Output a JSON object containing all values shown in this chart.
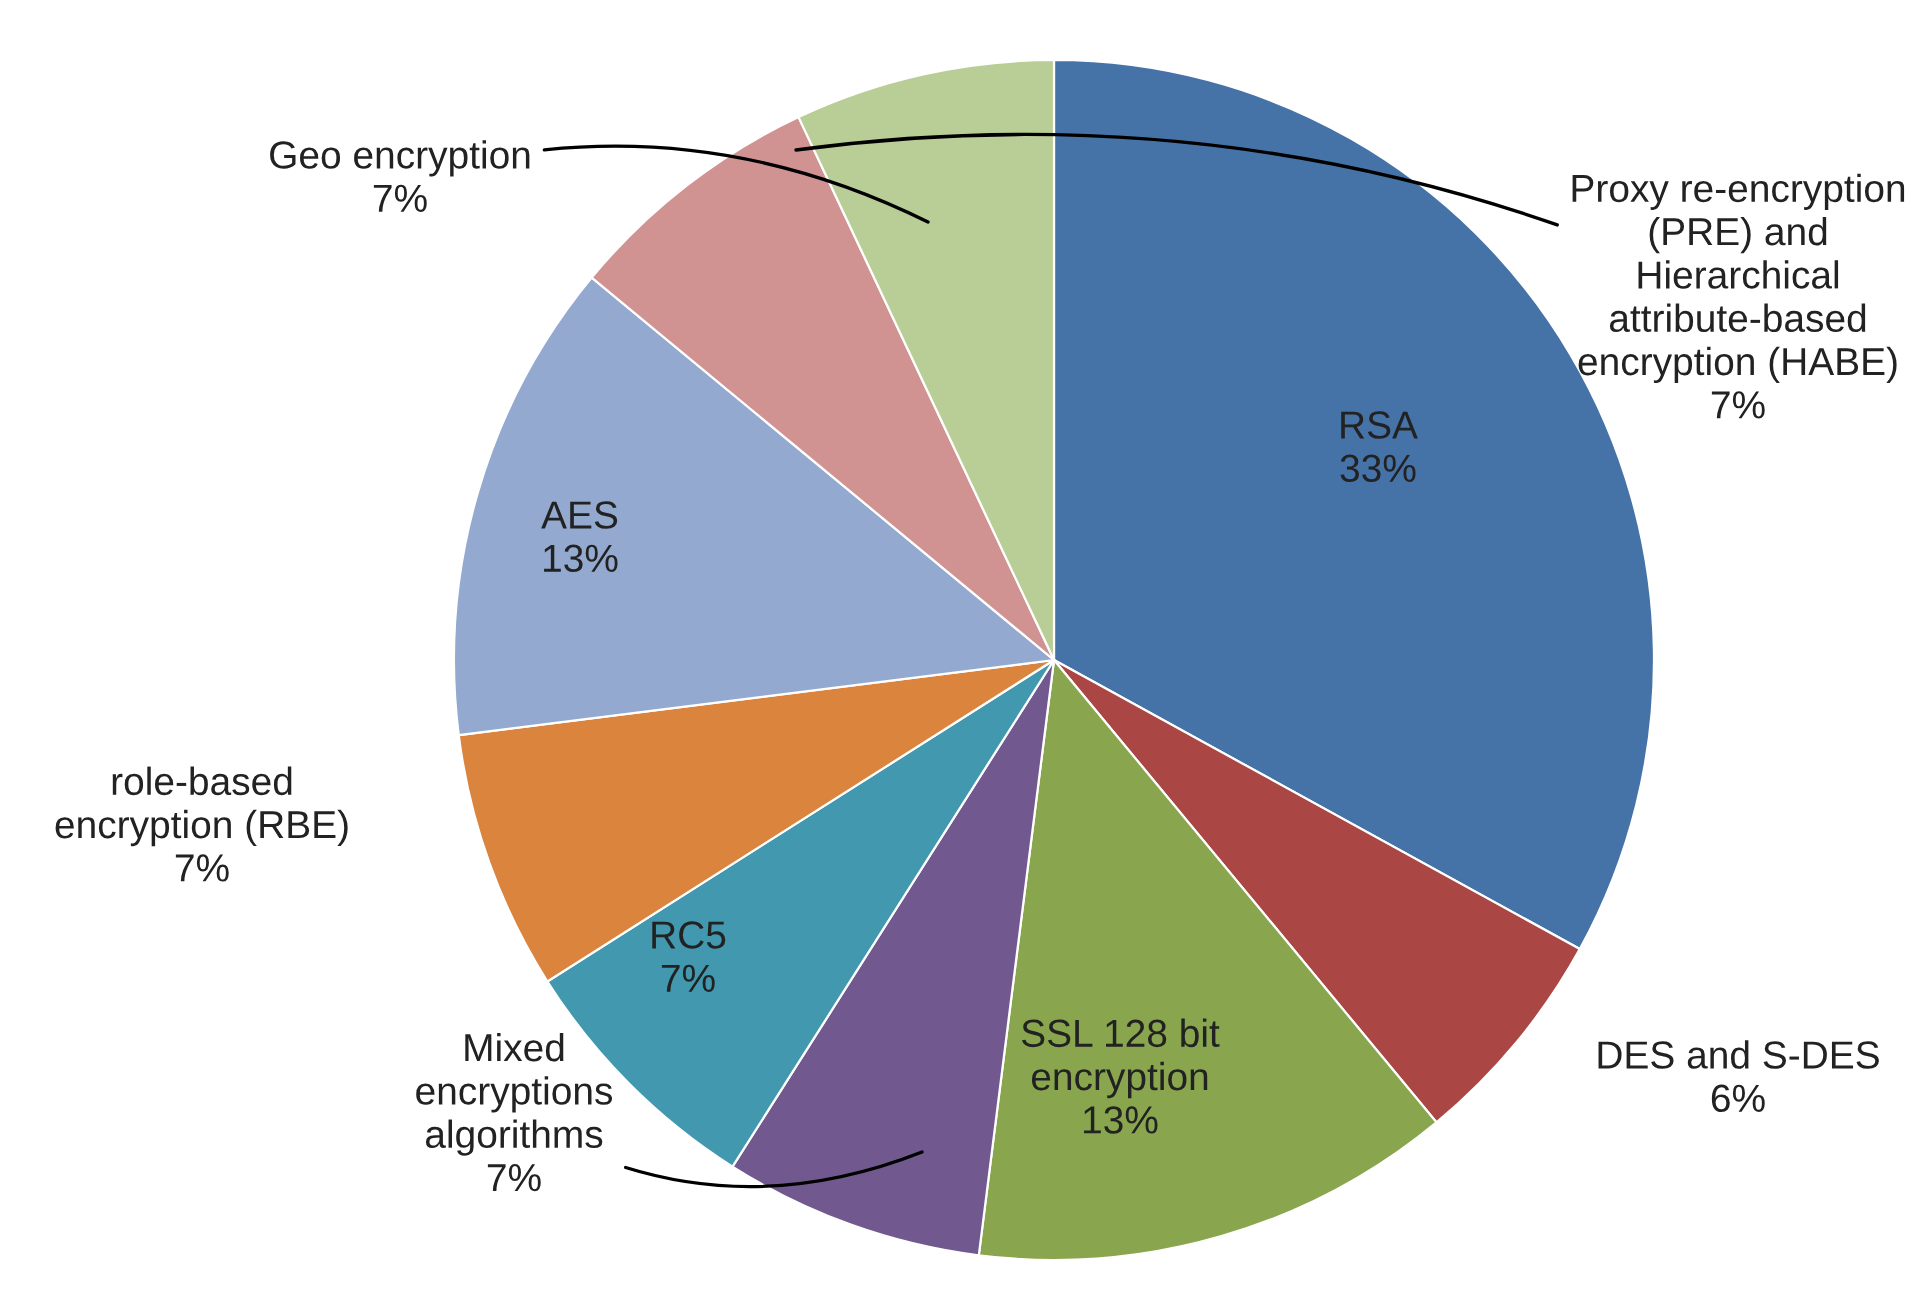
{
  "chart_data": {
    "type": "pie",
    "categories": [
      "RSA",
      "DES and S-DES",
      "SSL 128 bit encryption",
      "Mixed encryptions algorithms",
      "RC5",
      "role-based encryption (RBE)",
      "AES",
      "Proxy re-encryption (PRE) and  Hierarchical attribute-based encryption (HABE)",
      "Geo encryption"
    ],
    "values": [
      33,
      6,
      13,
      7,
      7,
      7,
      13,
      7,
      7
    ],
    "value_labels": [
      "33%",
      "6%",
      "13%",
      "7%",
      "7%",
      "7%",
      "13%",
      "7%",
      "7%"
    ],
    "colors": [
      "#4572a7",
      "#aa4643",
      "#89a54e",
      "#71588f",
      "#4198af",
      "#db843d",
      "#93a9cf",
      "#d19392",
      "#b9cd96"
    ],
    "legend": false
  }
}
